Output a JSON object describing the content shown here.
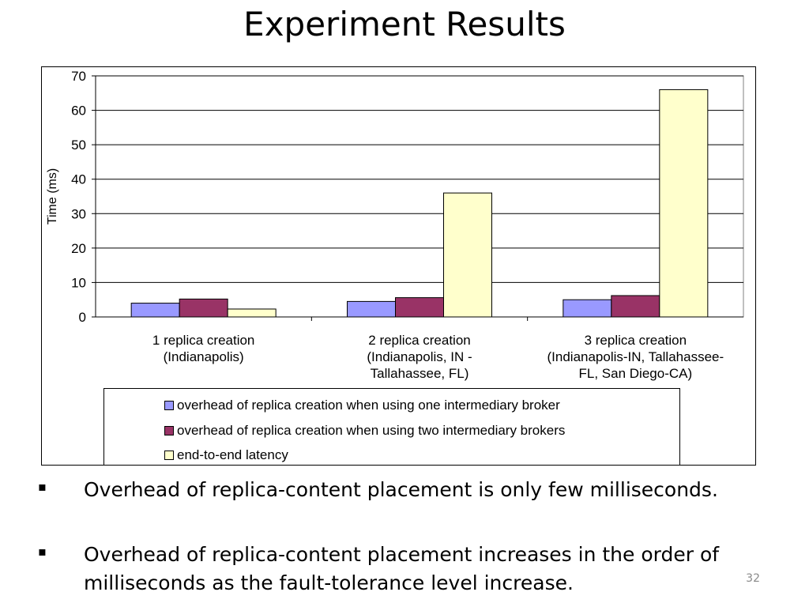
{
  "slide": {
    "title": "Experiment Results",
    "page_number": "32"
  },
  "bullets": [
    {
      "marker": "▪",
      "text": "Overhead of replica-content placement is only few milliseconds."
    },
    {
      "marker": "▪",
      "text": "Overhead of replica-content placement increases in the order of milliseconds as the fault-tolerance level increase."
    }
  ],
  "chart_data": {
    "type": "bar",
    "ylabel": "Time (ms)",
    "ylim": [
      0,
      70
    ],
    "yticks": [
      "0",
      "10",
      "20",
      "30",
      "40",
      "50",
      "60",
      "70"
    ],
    "grid": true,
    "legend_position": "bottom",
    "categories": [
      [
        "1 replica creation",
        "(Indianapolis)"
      ],
      [
        "2 replica creation",
        "(Indianapolis, IN -",
        "Tallahassee, FL)"
      ],
      [
        "3 replica creation",
        "(Indianapolis-IN, Tallahassee-",
        "FL, San Diego-CA)"
      ]
    ],
    "series": [
      {
        "name": "overhead of replica creation when using one intermediary broker",
        "color": "#9999ff",
        "values": [
          4.0,
          4.5,
          5.0
        ]
      },
      {
        "name": "overhead of replica creation when using two intermediary brokers",
        "color": "#993366",
        "values": [
          5.2,
          5.6,
          6.2
        ]
      },
      {
        "name": "end-to-end latency",
        "color": "#ffffcc",
        "values": [
          2.3,
          36,
          66
        ]
      }
    ]
  }
}
